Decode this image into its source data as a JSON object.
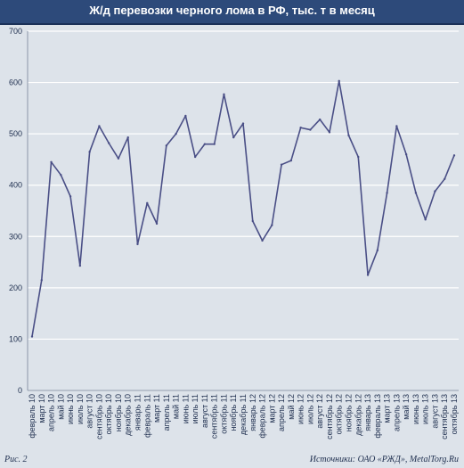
{
  "title": "Ж/д перевозки черного лома в РФ, тыс. т в месяц",
  "footer": {
    "figure_label": "Рис. 2",
    "source": "Источники: ОАО «РЖД», MetalTorg.Ru"
  },
  "colors": {
    "title_bg": "#2d4a7a",
    "line": "#4a4f86",
    "grid": "#ffffff",
    "plot_bg": "#dde3ea"
  },
  "chart_data": {
    "type": "line",
    "title": "Ж/д перевозки черного лома в РФ, тыс. т в месяц",
    "xlabel": "",
    "ylabel": "",
    "ylim": [
      0,
      700
    ],
    "yticks": [
      0,
      100,
      200,
      300,
      400,
      500,
      600,
      700
    ],
    "grid": true,
    "categories": [
      "февраль 10",
      "март 10",
      "апрель 10",
      "май 10",
      "июнь 10",
      "июль 10",
      "август 10",
      "сентябрь 10",
      "октябрь 10",
      "ноябрь 10",
      "декабрь 10",
      "январь 11",
      "февраль 11",
      "март 11",
      "апрель 11",
      "май 11",
      "июнь 11",
      "июль 11",
      "август 11",
      "сентябрь 11",
      "октябрь 11",
      "ноябрь 11",
      "декабрь 11",
      "январь 12",
      "февраль 12",
      "март 12",
      "апрель 12",
      "май 12",
      "июнь 12",
      "июль 12",
      "август 12",
      "сентябрь 12",
      "октябрь 12",
      "ноябрь 12",
      "декабрь 12",
      "январь 13",
      "февраль 13",
      "март 13",
      "апрель 13",
      "май 13",
      "июнь 13",
      "июль 13",
      "август 13",
      "сентябрь 13",
      "октябрь 13"
    ],
    "values": [
      105,
      215,
      445,
      420,
      378,
      243,
      465,
      515,
      482,
      452,
      493,
      285,
      365,
      325,
      477,
      500,
      535,
      455,
      480,
      480,
      577,
      493,
      520,
      330,
      292,
      322,
      440,
      448,
      512,
      508,
      528,
      503,
      603,
      497,
      455,
      225,
      273,
      385,
      515,
      460,
      385,
      333,
      388,
      412,
      458
    ]
  }
}
